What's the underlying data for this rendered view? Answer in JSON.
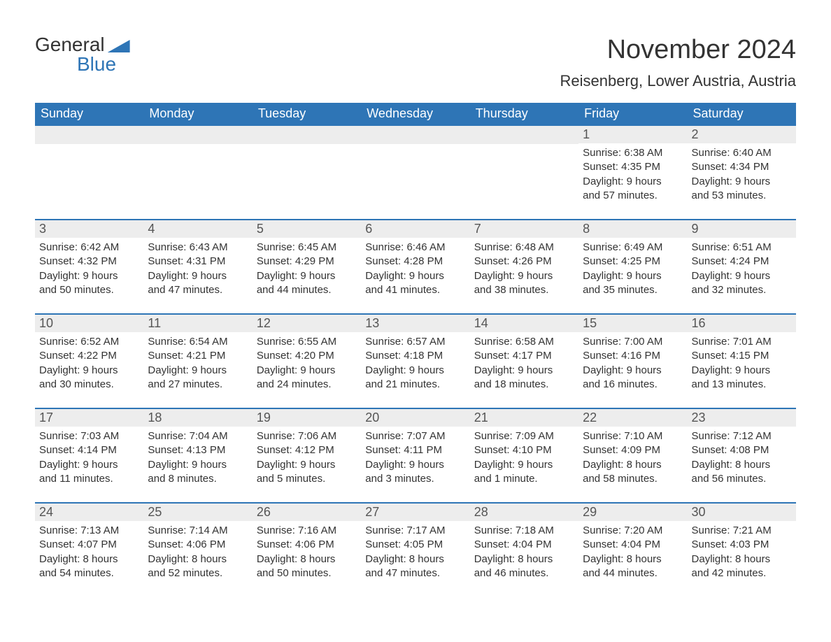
{
  "logo": {
    "word1": "General",
    "word2": "Blue"
  },
  "title": "November 2024",
  "location": "Reisenberg, Lower Austria, Austria",
  "columns": [
    "Sunday",
    "Monday",
    "Tuesday",
    "Wednesday",
    "Thursday",
    "Friday",
    "Saturday"
  ],
  "colors": {
    "header_bg": "#2e75b6",
    "header_text": "#ffffff",
    "daynum_bg": "#ededed",
    "text": "#333333",
    "border": "#2e75b6"
  },
  "weeks": [
    [
      null,
      null,
      null,
      null,
      null,
      {
        "day": "1",
        "sunrise": "Sunrise: 6:38 AM",
        "sunset": "Sunset: 4:35 PM",
        "daylight1": "Daylight: 9 hours",
        "daylight2": "and 57 minutes."
      },
      {
        "day": "2",
        "sunrise": "Sunrise: 6:40 AM",
        "sunset": "Sunset: 4:34 PM",
        "daylight1": "Daylight: 9 hours",
        "daylight2": "and 53 minutes."
      }
    ],
    [
      {
        "day": "3",
        "sunrise": "Sunrise: 6:42 AM",
        "sunset": "Sunset: 4:32 PM",
        "daylight1": "Daylight: 9 hours",
        "daylight2": "and 50 minutes."
      },
      {
        "day": "4",
        "sunrise": "Sunrise: 6:43 AM",
        "sunset": "Sunset: 4:31 PM",
        "daylight1": "Daylight: 9 hours",
        "daylight2": "and 47 minutes."
      },
      {
        "day": "5",
        "sunrise": "Sunrise: 6:45 AM",
        "sunset": "Sunset: 4:29 PM",
        "daylight1": "Daylight: 9 hours",
        "daylight2": "and 44 minutes."
      },
      {
        "day": "6",
        "sunrise": "Sunrise: 6:46 AM",
        "sunset": "Sunset: 4:28 PM",
        "daylight1": "Daylight: 9 hours",
        "daylight2": "and 41 minutes."
      },
      {
        "day": "7",
        "sunrise": "Sunrise: 6:48 AM",
        "sunset": "Sunset: 4:26 PM",
        "daylight1": "Daylight: 9 hours",
        "daylight2": "and 38 minutes."
      },
      {
        "day": "8",
        "sunrise": "Sunrise: 6:49 AM",
        "sunset": "Sunset: 4:25 PM",
        "daylight1": "Daylight: 9 hours",
        "daylight2": "and 35 minutes."
      },
      {
        "day": "9",
        "sunrise": "Sunrise: 6:51 AM",
        "sunset": "Sunset: 4:24 PM",
        "daylight1": "Daylight: 9 hours",
        "daylight2": "and 32 minutes."
      }
    ],
    [
      {
        "day": "10",
        "sunrise": "Sunrise: 6:52 AM",
        "sunset": "Sunset: 4:22 PM",
        "daylight1": "Daylight: 9 hours",
        "daylight2": "and 30 minutes."
      },
      {
        "day": "11",
        "sunrise": "Sunrise: 6:54 AM",
        "sunset": "Sunset: 4:21 PM",
        "daylight1": "Daylight: 9 hours",
        "daylight2": "and 27 minutes."
      },
      {
        "day": "12",
        "sunrise": "Sunrise: 6:55 AM",
        "sunset": "Sunset: 4:20 PM",
        "daylight1": "Daylight: 9 hours",
        "daylight2": "and 24 minutes."
      },
      {
        "day": "13",
        "sunrise": "Sunrise: 6:57 AM",
        "sunset": "Sunset: 4:18 PM",
        "daylight1": "Daylight: 9 hours",
        "daylight2": "and 21 minutes."
      },
      {
        "day": "14",
        "sunrise": "Sunrise: 6:58 AM",
        "sunset": "Sunset: 4:17 PM",
        "daylight1": "Daylight: 9 hours",
        "daylight2": "and 18 minutes."
      },
      {
        "day": "15",
        "sunrise": "Sunrise: 7:00 AM",
        "sunset": "Sunset: 4:16 PM",
        "daylight1": "Daylight: 9 hours",
        "daylight2": "and 16 minutes."
      },
      {
        "day": "16",
        "sunrise": "Sunrise: 7:01 AM",
        "sunset": "Sunset: 4:15 PM",
        "daylight1": "Daylight: 9 hours",
        "daylight2": "and 13 minutes."
      }
    ],
    [
      {
        "day": "17",
        "sunrise": "Sunrise: 7:03 AM",
        "sunset": "Sunset: 4:14 PM",
        "daylight1": "Daylight: 9 hours",
        "daylight2": "and 11 minutes."
      },
      {
        "day": "18",
        "sunrise": "Sunrise: 7:04 AM",
        "sunset": "Sunset: 4:13 PM",
        "daylight1": "Daylight: 9 hours",
        "daylight2": "and 8 minutes."
      },
      {
        "day": "19",
        "sunrise": "Sunrise: 7:06 AM",
        "sunset": "Sunset: 4:12 PM",
        "daylight1": "Daylight: 9 hours",
        "daylight2": "and 5 minutes."
      },
      {
        "day": "20",
        "sunrise": "Sunrise: 7:07 AM",
        "sunset": "Sunset: 4:11 PM",
        "daylight1": "Daylight: 9 hours",
        "daylight2": "and 3 minutes."
      },
      {
        "day": "21",
        "sunrise": "Sunrise: 7:09 AM",
        "sunset": "Sunset: 4:10 PM",
        "daylight1": "Daylight: 9 hours",
        "daylight2": "and 1 minute."
      },
      {
        "day": "22",
        "sunrise": "Sunrise: 7:10 AM",
        "sunset": "Sunset: 4:09 PM",
        "daylight1": "Daylight: 8 hours",
        "daylight2": "and 58 minutes."
      },
      {
        "day": "23",
        "sunrise": "Sunrise: 7:12 AM",
        "sunset": "Sunset: 4:08 PM",
        "daylight1": "Daylight: 8 hours",
        "daylight2": "and 56 minutes."
      }
    ],
    [
      {
        "day": "24",
        "sunrise": "Sunrise: 7:13 AM",
        "sunset": "Sunset: 4:07 PM",
        "daylight1": "Daylight: 8 hours",
        "daylight2": "and 54 minutes."
      },
      {
        "day": "25",
        "sunrise": "Sunrise: 7:14 AM",
        "sunset": "Sunset: 4:06 PM",
        "daylight1": "Daylight: 8 hours",
        "daylight2": "and 52 minutes."
      },
      {
        "day": "26",
        "sunrise": "Sunrise: 7:16 AM",
        "sunset": "Sunset: 4:06 PM",
        "daylight1": "Daylight: 8 hours",
        "daylight2": "and 50 minutes."
      },
      {
        "day": "27",
        "sunrise": "Sunrise: 7:17 AM",
        "sunset": "Sunset: 4:05 PM",
        "daylight1": "Daylight: 8 hours",
        "daylight2": "and 47 minutes."
      },
      {
        "day": "28",
        "sunrise": "Sunrise: 7:18 AM",
        "sunset": "Sunset: 4:04 PM",
        "daylight1": "Daylight: 8 hours",
        "daylight2": "and 46 minutes."
      },
      {
        "day": "29",
        "sunrise": "Sunrise: 7:20 AM",
        "sunset": "Sunset: 4:04 PM",
        "daylight1": "Daylight: 8 hours",
        "daylight2": "and 44 minutes."
      },
      {
        "day": "30",
        "sunrise": "Sunrise: 7:21 AM",
        "sunset": "Sunset: 4:03 PM",
        "daylight1": "Daylight: 8 hours",
        "daylight2": "and 42 minutes."
      }
    ]
  ]
}
